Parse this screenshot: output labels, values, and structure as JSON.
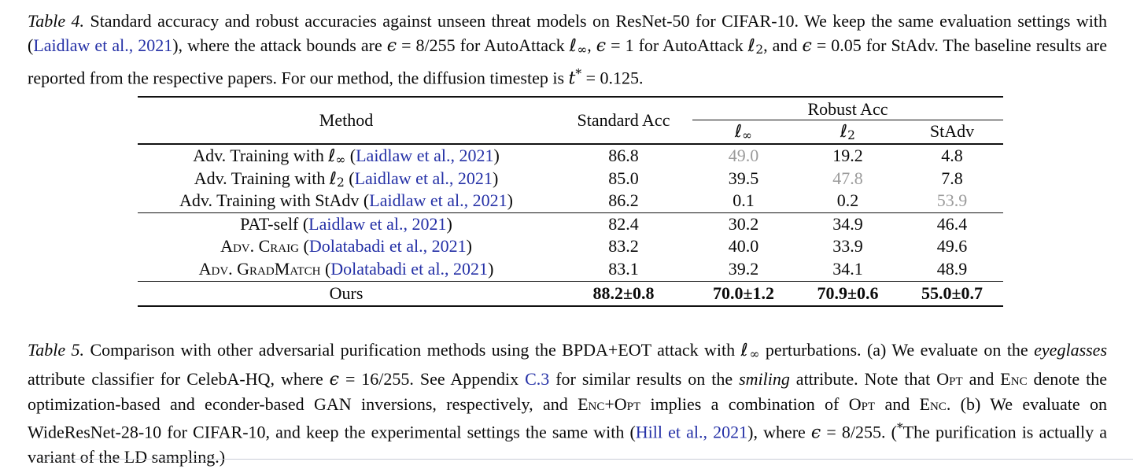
{
  "colors": {
    "bg": "#ffffff",
    "text": "#0a0a0a",
    "link": "#2430a6",
    "grayval": "#9b9b9b",
    "rule": "#111111",
    "divider": "#c9cdd6"
  },
  "caption_table4": {
    "segments": [
      {
        "t": "Table 4.",
        "s": "i"
      },
      {
        "t": " Standard accuracy and robust accuracies against unseen threat models on ResNet-50 for CIFAR-10. We keep the same evaluation settings with (",
        "s": "n"
      },
      {
        "t": "Laidlaw et al., 2021",
        "s": "l"
      },
      {
        "t": "), where the attack bounds are ",
        "s": "n"
      },
      {
        "t": "ϵ",
        "s": "m"
      },
      {
        "t": " = 8/255 for AutoAttack ",
        "s": "n"
      },
      {
        "t": "ℓ",
        "s": "m"
      },
      {
        "t": "∞",
        "s": "sub"
      },
      {
        "t": ", ",
        "s": "n"
      },
      {
        "t": "ϵ",
        "s": "m"
      },
      {
        "t": " = 1 for AutoAttack ",
        "s": "n"
      },
      {
        "t": "ℓ",
        "s": "m"
      },
      {
        "t": "2",
        "s": "sub"
      },
      {
        "t": ", and ",
        "s": "n"
      },
      {
        "t": "ϵ",
        "s": "m"
      },
      {
        "t": " = 0.05 for StAdv. The baseline results are reported from the respective papers. For our method, the diffusion timestep is ",
        "s": "n"
      },
      {
        "t": "t",
        "s": "m"
      },
      {
        "t": "*",
        "s": "sup"
      },
      {
        "t": " = 0.125.",
        "s": "n"
      }
    ]
  },
  "caption_table5": {
    "segments": [
      {
        "t": "Table 5.",
        "s": "i"
      },
      {
        "t": " Comparison with other adversarial purification methods using the BPDA+EOT attack with ",
        "s": "n"
      },
      {
        "t": "ℓ",
        "s": "m"
      },
      {
        "t": "∞",
        "s": "sub"
      },
      {
        "t": " perturbations. (a) We evaluate on the ",
        "s": "n"
      },
      {
        "t": "eyeglasses",
        "s": "i"
      },
      {
        "t": " attribute classifier for CelebA-HQ, where ",
        "s": "n"
      },
      {
        "t": "ϵ",
        "s": "m"
      },
      {
        "t": " = 16/255. See Appendix ",
        "s": "n"
      },
      {
        "t": "C.3",
        "s": "l"
      },
      {
        "t": " for similar results on the ",
        "s": "n"
      },
      {
        "t": "smiling",
        "s": "i"
      },
      {
        "t": " attribute. Note that ",
        "s": "n"
      },
      {
        "t": "Opt",
        "s": "sc"
      },
      {
        "t": " and ",
        "s": "n"
      },
      {
        "t": "Enc",
        "s": "sc"
      },
      {
        "t": " denote the optimization-based and econder-based GAN inversions, respectively, and ",
        "s": "n"
      },
      {
        "t": "Enc+Opt",
        "s": "sc"
      },
      {
        "t": " implies a combination of ",
        "s": "n"
      },
      {
        "t": "Opt",
        "s": "sc"
      },
      {
        "t": " and ",
        "s": "n"
      },
      {
        "t": "Enc",
        "s": "sc"
      },
      {
        "t": ". (b) We evaluate on WideResNet-28-10 for CIFAR-10, and keep the experimental settings the same with (",
        "s": "n"
      },
      {
        "t": "Hill et al., 2021",
        "s": "l"
      },
      {
        "t": "), where ",
        "s": "n"
      },
      {
        "t": "ϵ",
        "s": "m"
      },
      {
        "t": " = 8/255. (",
        "s": "n"
      },
      {
        "t": "*",
        "s": "sup"
      },
      {
        "t": "The purification is actually a variant of the LD sampling.)",
        "s": "n"
      }
    ]
  },
  "table": {
    "header": {
      "method": "Method",
      "standard": "Standard Acc",
      "robust_group": "Robust Acc",
      "linf": [
        {
          "t": "ℓ",
          "s": "m"
        },
        {
          "t": "∞",
          "s": "sub"
        }
      ],
      "l2": [
        {
          "t": "ℓ",
          "s": "m"
        },
        {
          "t": "2",
          "s": "sub"
        }
      ],
      "stadv": "StAdv"
    },
    "sections": [
      {
        "rows": [
          {
            "method": [
              {
                "t": "Adv. Training with ",
                "s": "n"
              },
              {
                "t": "ℓ",
                "s": "m"
              },
              {
                "t": "∞",
                "s": "sub"
              },
              {
                "t": " (",
                "s": "n"
              },
              {
                "t": "Laidlaw et al., 2021",
                "s": "l"
              },
              {
                "t": ")",
                "s": "n"
              }
            ],
            "values": [
              {
                "t": "86.8"
              },
              {
                "t": "49.0",
                "gray": true
              },
              {
                "t": "19.2"
              },
              {
                "t": "4.8"
              }
            ]
          },
          {
            "method": [
              {
                "t": "Adv. Training with ",
                "s": "n"
              },
              {
                "t": "ℓ",
                "s": "m"
              },
              {
                "t": "2",
                "s": "sub"
              },
              {
                "t": " (",
                "s": "n"
              },
              {
                "t": "Laidlaw et al., 2021",
                "s": "l"
              },
              {
                "t": ")",
                "s": "n"
              }
            ],
            "values": [
              {
                "t": "85.0"
              },
              {
                "t": "39.5"
              },
              {
                "t": "47.8",
                "gray": true
              },
              {
                "t": "7.8"
              }
            ]
          },
          {
            "method": [
              {
                "t": "Adv. Training with StAdv (",
                "s": "n"
              },
              {
                "t": "Laidlaw et al., 2021",
                "s": "l"
              },
              {
                "t": ")",
                "s": "n"
              }
            ],
            "values": [
              {
                "t": "86.2"
              },
              {
                "t": "0.1"
              },
              {
                "t": "0.2"
              },
              {
                "t": "53.9",
                "gray": true
              }
            ]
          }
        ]
      },
      {
        "rows": [
          {
            "method": [
              {
                "t": "PAT-self (",
                "s": "n"
              },
              {
                "t": "Laidlaw et al., 2021",
                "s": "l"
              },
              {
                "t": ")",
                "s": "n"
              }
            ],
            "values": [
              {
                "t": "82.4"
              },
              {
                "t": "30.2"
              },
              {
                "t": "34.9"
              },
              {
                "t": "46.4"
              }
            ]
          },
          {
            "method": [
              {
                "t": "Adv. Craig",
                "s": "sc"
              },
              {
                "t": " (",
                "s": "n"
              },
              {
                "t": "Dolatabadi et al., 2021",
                "s": "l"
              },
              {
                "t": ")",
                "s": "n"
              }
            ],
            "values": [
              {
                "t": "83.2"
              },
              {
                "t": "40.0"
              },
              {
                "t": "33.9"
              },
              {
                "t": "49.6"
              }
            ]
          },
          {
            "method": [
              {
                "t": "Adv. GradMatch",
                "s": "sc"
              },
              {
                "t": " (",
                "s": "n"
              },
              {
                "t": "Dolatabadi et al., 2021",
                "s": "l"
              },
              {
                "t": ")",
                "s": "n"
              }
            ],
            "values": [
              {
                "t": "83.1"
              },
              {
                "t": "39.2"
              },
              {
                "t": "34.1"
              },
              {
                "t": "48.9"
              }
            ]
          }
        ]
      },
      {
        "rows": [
          {
            "method": [
              {
                "t": "Ours",
                "s": "n"
              }
            ],
            "bold_values": true,
            "values": [
              {
                "t": "88.2±0.8"
              },
              {
                "t": "70.0±1.2"
              },
              {
                "t": "70.9±0.6"
              },
              {
                "t": "55.0±0.7"
              }
            ]
          }
        ]
      }
    ]
  }
}
